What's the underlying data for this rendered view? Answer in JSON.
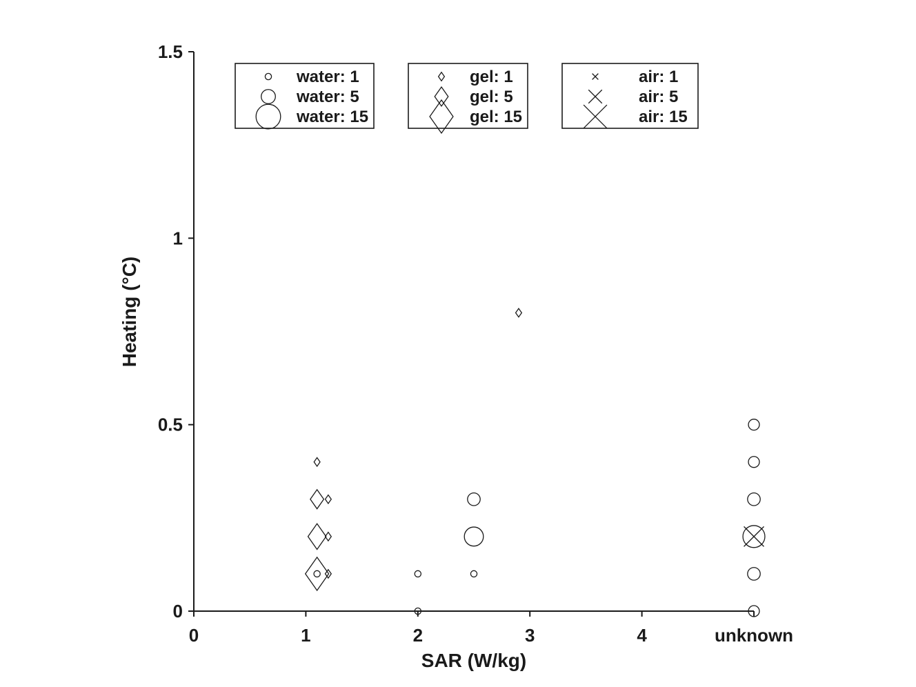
{
  "chart_data": {
    "type": "scatter",
    "title": "",
    "xlabel": "SAR (W/kg)",
    "ylabel": "Heating (°C)",
    "xlim": [
      0,
      5
    ],
    "ylim": [
      0,
      1.5
    ],
    "xticks": [
      0,
      1,
      2,
      3,
      4,
      5
    ],
    "xtick_labels": [
      "0",
      "1",
      "2",
      "3",
      "4",
      "unknown"
    ],
    "yticks": [
      0,
      0.5,
      1,
      1.5
    ],
    "ytick_labels": [
      "0",
      "0.5",
      "1",
      "1.5"
    ],
    "grid": false,
    "marker_size_meaning": "number of points (1, 5, 15)",
    "legend_groups": [
      {
        "marker": "circle",
        "entries": [
          {
            "label": "water: 1",
            "size": 1
          },
          {
            "label": "water: 5",
            "size": 5
          },
          {
            "label": "water: 15",
            "size": 15
          }
        ]
      },
      {
        "marker": "diamond",
        "entries": [
          {
            "label": "gel: 1",
            "size": 1
          },
          {
            "label": "gel: 5",
            "size": 5
          },
          {
            "label": "gel: 15",
            "size": 15
          }
        ]
      },
      {
        "marker": "x",
        "entries": [
          {
            "label": "air: 1",
            "size": 1
          },
          {
            "label": "air: 5",
            "size": 5
          },
          {
            "label": "air: 15",
            "size": 15
          }
        ]
      }
    ],
    "series": [
      {
        "name": "water",
        "marker": "circle",
        "points": [
          {
            "x": 1.1,
            "y": 0.1,
            "size": 1
          },
          {
            "x": 2.0,
            "y": 0.1,
            "size": 1
          },
          {
            "x": 2.0,
            "y": 0.0,
            "size": 1
          },
          {
            "x": 2.5,
            "y": 0.1,
            "size": 1
          },
          {
            "x": 2.5,
            "y": 0.2,
            "size": 9
          },
          {
            "x": 2.5,
            "y": 0.3,
            "size": 4
          },
          {
            "x": 5,
            "y": 0.0,
            "size": 3
          },
          {
            "x": 5,
            "y": 0.1,
            "size": 4
          },
          {
            "x": 5,
            "y": 0.2,
            "size": 12
          },
          {
            "x": 5,
            "y": 0.3,
            "size": 4
          },
          {
            "x": 5,
            "y": 0.4,
            "size": 3
          },
          {
            "x": 5,
            "y": 0.5,
            "size": 3
          }
        ]
      },
      {
        "name": "gel",
        "marker": "diamond",
        "points": [
          {
            "x": 1.1,
            "y": 0.4,
            "size": 1
          },
          {
            "x": 1.1,
            "y": 0.3,
            "size": 5
          },
          {
            "x": 1.2,
            "y": 0.3,
            "size": 1
          },
          {
            "x": 1.1,
            "y": 0.2,
            "size": 9
          },
          {
            "x": 1.2,
            "y": 0.2,
            "size": 1
          },
          {
            "x": 1.1,
            "y": 0.1,
            "size": 15
          },
          {
            "x": 1.2,
            "y": 0.1,
            "size": 1
          },
          {
            "x": 2.9,
            "y": 0.8,
            "size": 1
          }
        ]
      },
      {
        "name": "air",
        "marker": "x",
        "points": [
          {
            "x": 5,
            "y": 0.2,
            "size": 11
          }
        ]
      }
    ]
  }
}
